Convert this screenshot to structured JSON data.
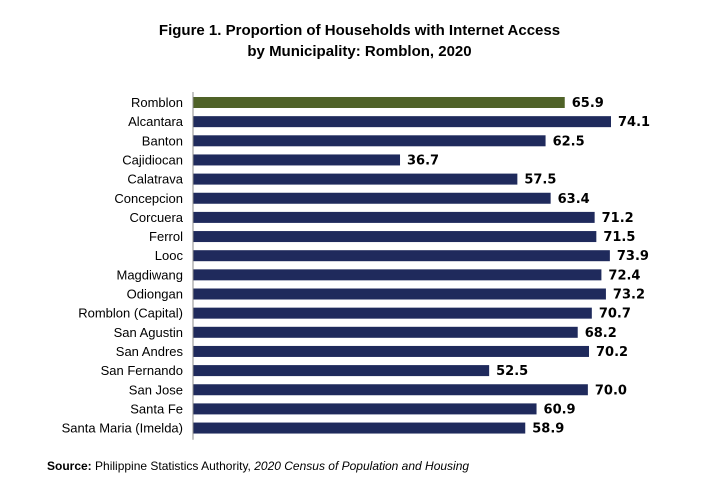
{
  "title_line1": "Figure 1. Proportion of Households with Internet Access",
  "title_line2": "by Municipality: Romblon, 2020",
  "source_label": "Source:",
  "source_org": "Philippine Statistics Authority,",
  "source_pub": "2020 Census of Population and Housing",
  "colors": {
    "highlight": "#4f6228",
    "default": "#1f2a5c",
    "axis": "#8c8c8c"
  },
  "chart_data": {
    "type": "bar",
    "orientation": "horizontal",
    "categories": [
      "Romblon",
      "Alcantara",
      "Banton",
      "Cajidiocan",
      "Calatrava",
      "Concepcion",
      "Corcuera",
      "Ferrol",
      "Looc",
      "Magdiwang",
      "Odiongan",
      "Romblon (Capital)",
      "San Agustin",
      "San Andres",
      "San Fernando",
      "San Jose",
      "Santa Fe",
      "Santa Maria (Imelda)"
    ],
    "values": [
      65.9,
      74.1,
      62.5,
      36.7,
      57.5,
      63.4,
      71.2,
      71.5,
      73.9,
      72.4,
      73.2,
      70.7,
      68.2,
      70.2,
      52.5,
      70.0,
      60.9,
      58.9
    ],
    "data_labels": [
      "65.9",
      "74.1",
      "62.5",
      "36.7",
      "57.5",
      "63.4",
      "71.2",
      "71.5",
      "73.9",
      "72.4",
      "73.2",
      "70.7",
      "68.2",
      "70.2",
      "52.5",
      "70.0",
      "60.9",
      "58.9"
    ],
    "highlight_category": "Romblon",
    "xlim": [
      0,
      74.1
    ],
    "grid": false,
    "legend": "none"
  }
}
